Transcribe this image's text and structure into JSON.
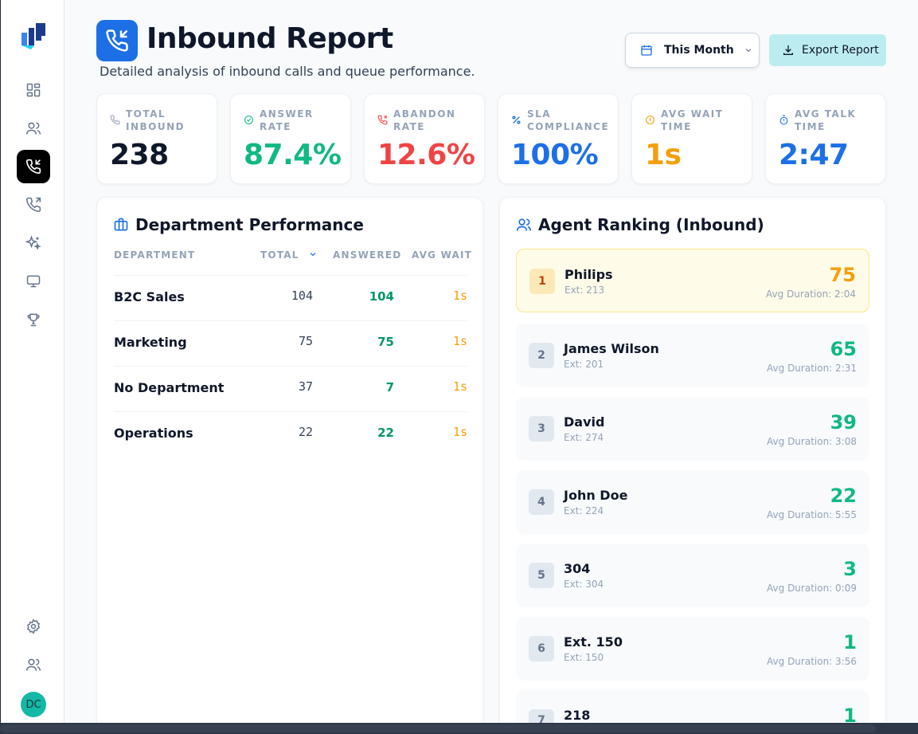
{
  "page": {
    "title": "Inbound Report",
    "subtitle": "Detailed analysis of inbound calls and queue performance."
  },
  "controls": {
    "date_range": "This Month",
    "export_label": "Export Report"
  },
  "kpis": [
    {
      "label": "TOTAL INBOUND",
      "value": "238",
      "color": "#0f172a",
      "icon": "phone-icon"
    },
    {
      "label": "ANSWER RATE",
      "value": "87.4%",
      "color": "#10b981",
      "icon": "check-circle-icon"
    },
    {
      "label": "ABANDON RATE",
      "value": "12.6%",
      "color": "#ef4444",
      "icon": "phone-missed-icon"
    },
    {
      "label": "SLA COMPLIANCE",
      "value": "100%",
      "color": "#1d6fe6",
      "icon": "percent-icon"
    },
    {
      "label": "AVG WAIT TIME",
      "value": "1s",
      "color": "#f59e0b",
      "icon": "clock-icon"
    },
    {
      "label": "AVG TALK TIME",
      "value": "2:47",
      "color": "#1d6fe6",
      "icon": "timer-icon"
    }
  ],
  "department": {
    "title": "Department Performance",
    "columns": [
      "DEPARTMENT",
      "TOTAL",
      "ANSWERED",
      "AVG WAIT"
    ],
    "rows": [
      {
        "name": "B2C Sales",
        "total": "104",
        "answered": "104",
        "wait": "1s"
      },
      {
        "name": "Marketing",
        "total": "75",
        "answered": "75",
        "wait": "1s"
      },
      {
        "name": "No Department",
        "total": "37",
        "answered": "7",
        "wait": "1s"
      },
      {
        "name": "Operations",
        "total": "22",
        "answered": "22",
        "wait": "1s"
      }
    ]
  },
  "agents": {
    "title": "Agent Ranking (Inbound)",
    "items": [
      {
        "rank": "1",
        "name": "Philips",
        "ext": "Ext: 213",
        "count": "75",
        "duration": "Avg Duration: 2:04"
      },
      {
        "rank": "2",
        "name": "James Wilson",
        "ext": "Ext: 201",
        "count": "65",
        "duration": "Avg Duration: 2:31"
      },
      {
        "rank": "3",
        "name": "David",
        "ext": "Ext: 274",
        "count": "39",
        "duration": "Avg Duration: 3:08"
      },
      {
        "rank": "4",
        "name": "John Doe",
        "ext": "Ext: 224",
        "count": "22",
        "duration": "Avg Duration: 5:55"
      },
      {
        "rank": "5",
        "name": "304",
        "ext": "Ext: 304",
        "count": "3",
        "duration": "Avg Duration: 0:09"
      },
      {
        "rank": "6",
        "name": "Ext. 150",
        "ext": "Ext: 150",
        "count": "1",
        "duration": "Avg Duration: 3:56"
      },
      {
        "rank": "7",
        "name": "218",
        "ext": "",
        "count": "1",
        "duration": ""
      }
    ]
  },
  "user": {
    "initials": "DC"
  }
}
